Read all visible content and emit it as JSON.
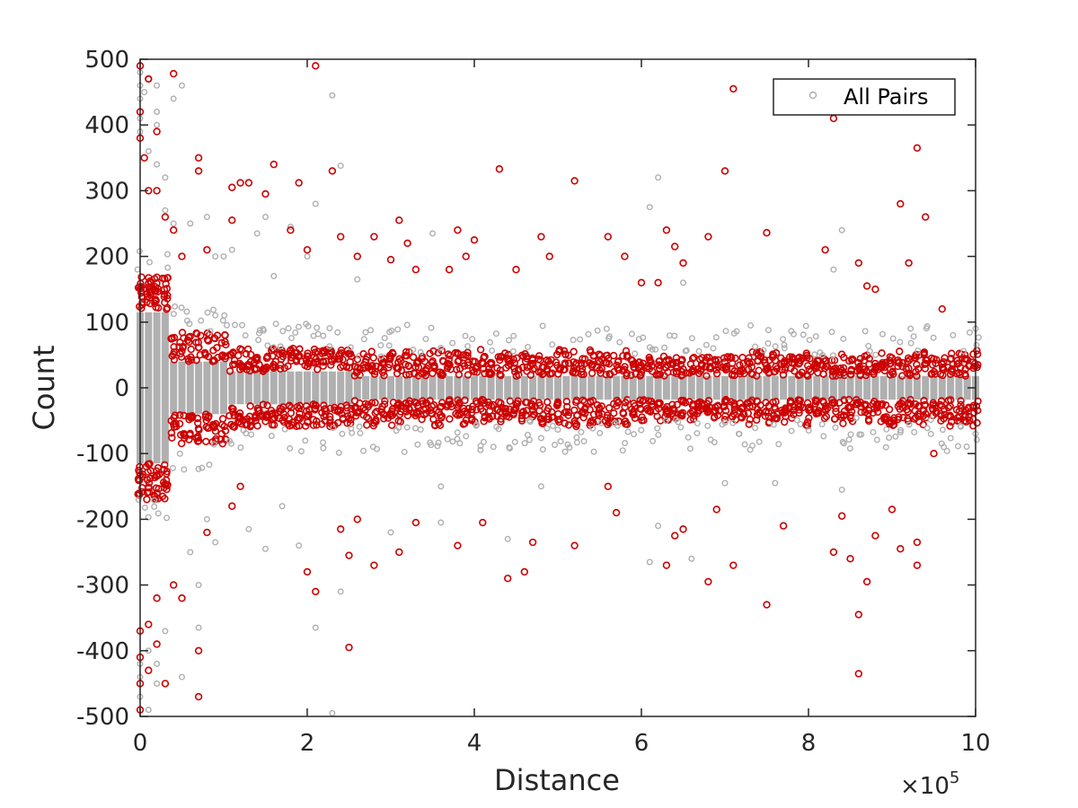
{
  "chart_data": {
    "type": "scatter",
    "xlabel": "Distance",
    "ylabel": "Count",
    "xlim": [
      0,
      1000000
    ],
    "ylim": [
      -500,
      500
    ],
    "x_ticks": [
      0,
      200000,
      400000,
      600000,
      800000,
      1000000
    ],
    "x_tick_labels": [
      "0",
      "2",
      "4",
      "6",
      "8",
      "10"
    ],
    "x_exponent_label": {
      "base": "×10",
      "power": "5"
    },
    "y_ticks": [
      500,
      400,
      300,
      200,
      100,
      0,
      -100,
      -200,
      -300,
      -400,
      -500
    ],
    "y_tick_labels": [
      "500",
      "400",
      "300",
      "200",
      "100",
      "0",
      "-100",
      "-200",
      "-300",
      "-400",
      "-500"
    ],
    "grid": false,
    "legend": {
      "position": "top-right",
      "entries": [
        {
          "label": "All Pairs",
          "color": "#b0b0b0",
          "marker": "circle"
        }
      ]
    },
    "series": [
      {
        "name": "All Pairs",
        "color": "#b0b0b0",
        "marker": "circle",
        "outliers": [
          [
            0,
            480
          ],
          [
            0,
            460
          ],
          [
            0,
            440
          ],
          [
            0,
            410
          ],
          [
            0,
            390
          ],
          [
            5000,
            450
          ],
          [
            10000,
            470
          ],
          [
            10000,
            360
          ],
          [
            20000,
            460
          ],
          [
            20000,
            420
          ],
          [
            20000,
            400
          ],
          [
            20000,
            340
          ],
          [
            30000,
            320
          ],
          [
            30000,
            270
          ],
          [
            40000,
            440
          ],
          [
            40000,
            250
          ],
          [
            50000,
            460
          ],
          [
            60000,
            250
          ],
          [
            80000,
            260
          ],
          [
            90000,
            200
          ],
          [
            100000,
            200
          ],
          [
            110000,
            210
          ],
          [
            140000,
            235
          ],
          [
            150000,
            260
          ],
          [
            160000,
            170
          ],
          [
            180000,
            245
          ],
          [
            200000,
            200
          ],
          [
            210000,
            280
          ],
          [
            230000,
            445
          ],
          [
            240000,
            338
          ],
          [
            260000,
            165
          ],
          [
            350000,
            235
          ],
          [
            620000,
            320
          ],
          [
            610000,
            275
          ],
          [
            650000,
            160
          ],
          [
            840000,
            240
          ],
          [
            830000,
            180
          ],
          [
            1000000,
            90
          ],
          [
            0,
            -470
          ],
          [
            0,
            -440
          ],
          [
            0,
            -420
          ],
          [
            10000,
            -490
          ],
          [
            10000,
            -400
          ],
          [
            20000,
            -420
          ],
          [
            20000,
            -450
          ],
          [
            30000,
            -370
          ],
          [
            50000,
            -440
          ],
          [
            60000,
            -250
          ],
          [
            70000,
            -300
          ],
          [
            70000,
            -365
          ],
          [
            80000,
            -200
          ],
          [
            90000,
            -235
          ],
          [
            130000,
            -215
          ],
          [
            150000,
            -245
          ],
          [
            170000,
            -180
          ],
          [
            190000,
            -240
          ],
          [
            210000,
            -365
          ],
          [
            230000,
            -495
          ],
          [
            240000,
            -310
          ],
          [
            300000,
            -220
          ],
          [
            360000,
            -205
          ],
          [
            360000,
            -150
          ],
          [
            440000,
            -230
          ],
          [
            480000,
            -150
          ],
          [
            610000,
            -265
          ],
          [
            620000,
            -210
          ],
          [
            660000,
            -260
          ],
          [
            700000,
            -145
          ],
          [
            760000,
            -145
          ],
          [
            840000,
            -155
          ],
          [
            1000000,
            -70
          ]
        ]
      },
      {
        "name": "",
        "color": "#cc0000",
        "marker": "circle",
        "outliers": [
          [
            0,
            490
          ],
          [
            0,
            420
          ],
          [
            0,
            380
          ],
          [
            5000,
            350
          ],
          [
            10000,
            470
          ],
          [
            10000,
            300
          ],
          [
            20000,
            390
          ],
          [
            20000,
            300
          ],
          [
            30000,
            260
          ],
          [
            40000,
            478
          ],
          [
            40000,
            240
          ],
          [
            50000,
            200
          ],
          [
            70000,
            350
          ],
          [
            70000,
            330
          ],
          [
            80000,
            210
          ],
          [
            110000,
            305
          ],
          [
            110000,
            255
          ],
          [
            120000,
            312
          ],
          [
            130000,
            312
          ],
          [
            150000,
            295
          ],
          [
            160000,
            340
          ],
          [
            180000,
            240
          ],
          [
            190000,
            312
          ],
          [
            200000,
            210
          ],
          [
            210000,
            490
          ],
          [
            230000,
            330
          ],
          [
            240000,
            230
          ],
          [
            260000,
            200
          ],
          [
            280000,
            230
          ],
          [
            300000,
            195
          ],
          [
            310000,
            255
          ],
          [
            320000,
            220
          ],
          [
            330000,
            180
          ],
          [
            370000,
            180
          ],
          [
            380000,
            240
          ],
          [
            390000,
            200
          ],
          [
            400000,
            225
          ],
          [
            430000,
            333
          ],
          [
            450000,
            180
          ],
          [
            480000,
            230
          ],
          [
            490000,
            200
          ],
          [
            520000,
            315
          ],
          [
            560000,
            230
          ],
          [
            580000,
            200
          ],
          [
            600000,
            160
          ],
          [
            620000,
            160
          ],
          [
            630000,
            240
          ],
          [
            640000,
            215
          ],
          [
            650000,
            190
          ],
          [
            680000,
            230
          ],
          [
            700000,
            330
          ],
          [
            710000,
            455
          ],
          [
            750000,
            236
          ],
          [
            820000,
            210
          ],
          [
            830000,
            410
          ],
          [
            860000,
            190
          ],
          [
            870000,
            155
          ],
          [
            880000,
            150
          ],
          [
            910000,
            280
          ],
          [
            920000,
            190
          ],
          [
            930000,
            365
          ],
          [
            940000,
            260
          ],
          [
            960000,
            120
          ],
          [
            0,
            -490
          ],
          [
            0,
            -450
          ],
          [
            0,
            -410
          ],
          [
            0,
            -370
          ],
          [
            10000,
            -430
          ],
          [
            10000,
            -360
          ],
          [
            20000,
            -390
          ],
          [
            20000,
            -320
          ],
          [
            30000,
            -450
          ],
          [
            40000,
            -300
          ],
          [
            50000,
            -320
          ],
          [
            70000,
            -470
          ],
          [
            70000,
            -400
          ],
          [
            80000,
            -220
          ],
          [
            110000,
            -180
          ],
          [
            120000,
            -150
          ],
          [
            200000,
            -280
          ],
          [
            210000,
            -310
          ],
          [
            240000,
            -215
          ],
          [
            250000,
            -395
          ],
          [
            250000,
            -255
          ],
          [
            260000,
            -200
          ],
          [
            280000,
            -270
          ],
          [
            310000,
            -250
          ],
          [
            330000,
            -205
          ],
          [
            380000,
            -240
          ],
          [
            410000,
            -205
          ],
          [
            440000,
            -290
          ],
          [
            460000,
            -280
          ],
          [
            470000,
            -235
          ],
          [
            520000,
            -240
          ],
          [
            560000,
            -150
          ],
          [
            570000,
            -190
          ],
          [
            630000,
            -270
          ],
          [
            640000,
            -225
          ],
          [
            650000,
            -215
          ],
          [
            680000,
            -295
          ],
          [
            690000,
            -185
          ],
          [
            710000,
            -270
          ],
          [
            750000,
            -330
          ],
          [
            770000,
            -210
          ],
          [
            830000,
            -250
          ],
          [
            840000,
            -195
          ],
          [
            850000,
            -260
          ],
          [
            860000,
            -345
          ],
          [
            860000,
            -435
          ],
          [
            870000,
            -295
          ],
          [
            880000,
            -225
          ],
          [
            900000,
            -185
          ],
          [
            910000,
            -245
          ],
          [
            930000,
            -270
          ],
          [
            930000,
            -235
          ],
          [
            950000,
            -100
          ]
        ]
      }
    ]
  }
}
